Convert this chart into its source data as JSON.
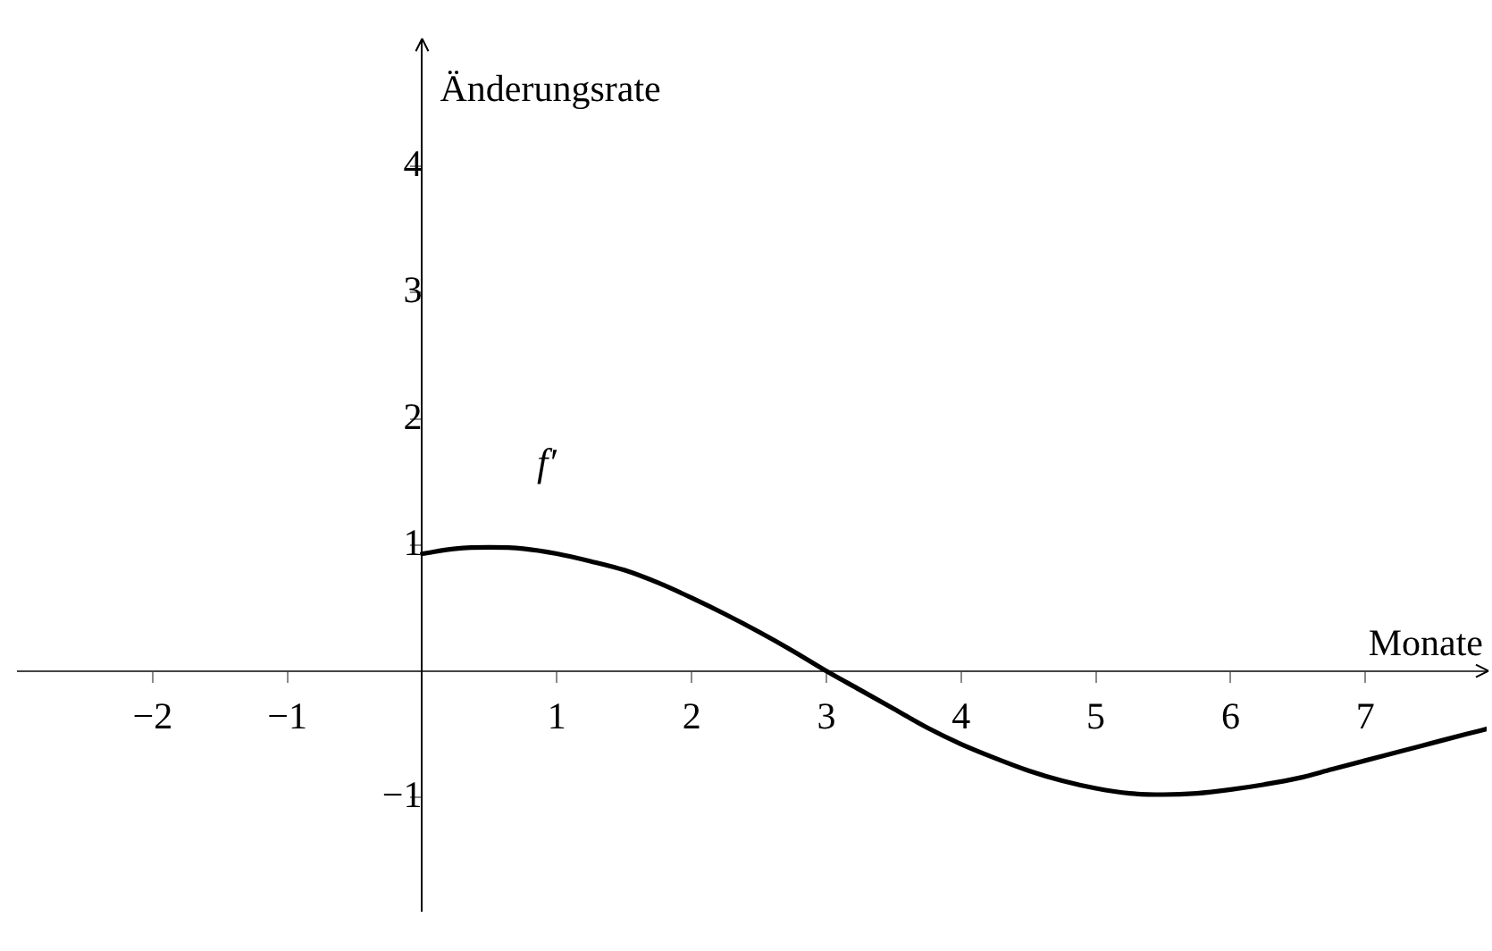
{
  "chart_data": {
    "type": "line",
    "xlabel": "Monate",
    "ylabel": "Änderungsrate",
    "xlim": [
      -3,
      7.9
    ],
    "ylim": [
      -1.9,
      5
    ],
    "xticks": [
      -2,
      -1,
      1,
      2,
      3,
      4,
      5,
      6,
      7
    ],
    "yticks": [
      -1,
      1,
      2,
      3,
      4
    ],
    "marker": "none",
    "line_style": "solid",
    "x": [
      0,
      0.25,
      0.5,
      0.75,
      1,
      1.25,
      1.5,
      1.75,
      2,
      2.25,
      2.5,
      2.75,
      3,
      3.25,
      3.5,
      3.75,
      4,
      4.25,
      4.5,
      4.75,
      5,
      5.25,
      5.5,
      5.75,
      6,
      6.25,
      6.5,
      6.75,
      7,
      7.25,
      7.5,
      7.75,
      7.9
    ],
    "series": [
      {
        "name": "f′",
        "color": "#000000",
        "values": [
          0.93,
          0.97,
          0.98,
          0.97,
          0.93,
          0.87,
          0.8,
          0.7,
          0.58,
          0.45,
          0.31,
          0.16,
          0.0,
          -0.15,
          -0.3,
          -0.45,
          -0.58,
          -0.69,
          -0.79,
          -0.87,
          -0.93,
          -0.97,
          -0.98,
          -0.97,
          -0.94,
          -0.9,
          -0.85,
          -0.78,
          -0.71,
          -0.64,
          -0.57,
          -0.5,
          -0.46
        ]
      }
    ]
  }
}
